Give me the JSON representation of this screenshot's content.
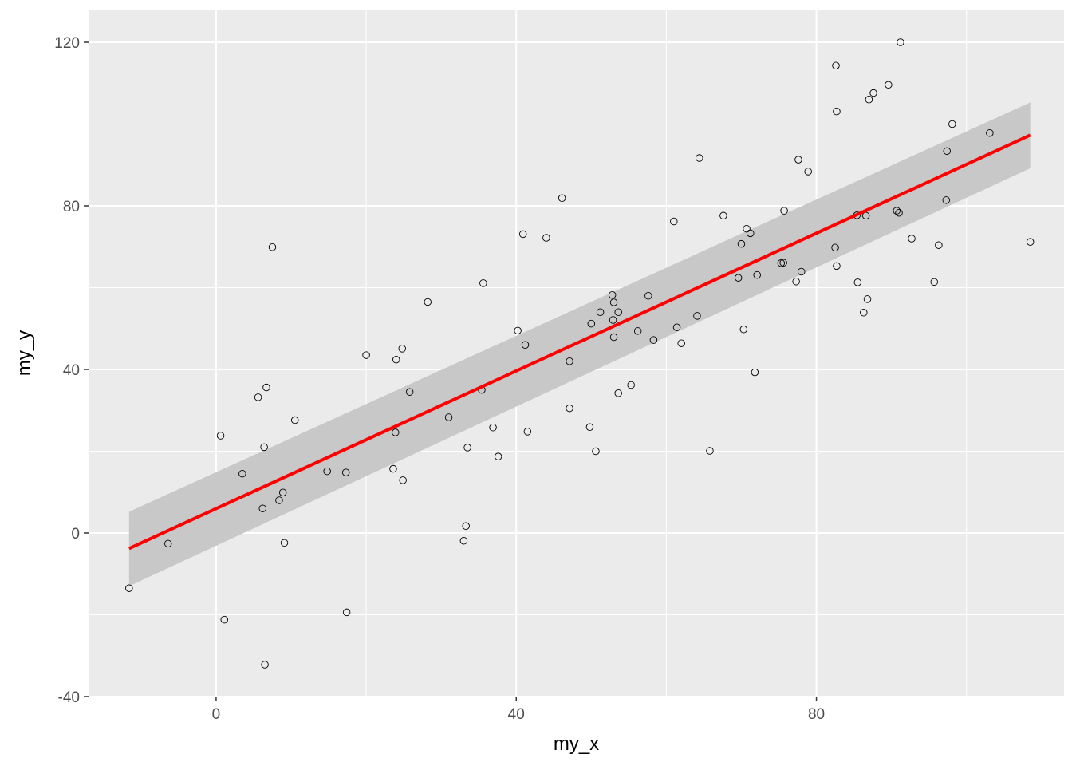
{
  "chart_data": {
    "type": "scatter",
    "title": "",
    "xlabel": "my_x",
    "ylabel": "my_y",
    "xlim": [
      -17,
      113
    ],
    "ylim": [
      -40,
      128
    ],
    "x_ticks": [
      0,
      40,
      80
    ],
    "x_tick_labels": [
      "0",
      "40",
      "80"
    ],
    "y_ticks": [
      -40,
      0,
      40,
      80,
      120
    ],
    "y_tick_labels": [
      "-40",
      "0",
      "40",
      "80",
      "120"
    ],
    "x_minor_ticks": [
      20,
      60,
      100
    ],
    "y_minor_ticks": [
      -20,
      20,
      60,
      100
    ],
    "grid": true,
    "legend": "none",
    "colors": {
      "panel_background": "#ebebeb",
      "grid_line": "#ffffff",
      "point_stroke": "#000000",
      "fit_line": "#ff0000",
      "confidence_band": "#c8c8c8"
    },
    "series": [
      {
        "kind": "points",
        "points": [
          [
            -11.6,
            -13.5
          ],
          [
            -6.4,
            -2.6
          ],
          [
            0.6,
            23.8
          ],
          [
            1.1,
            -21.2
          ],
          [
            3.5,
            14.5
          ],
          [
            5.6,
            33.2
          ],
          [
            6.2,
            6.0
          ],
          [
            6.4,
            21.0
          ],
          [
            6.7,
            35.6
          ],
          [
            6.5,
            -32.2
          ],
          [
            7.5,
            69.9
          ],
          [
            8.4,
            8.0
          ],
          [
            8.9,
            9.9
          ],
          [
            9.1,
            -2.4
          ],
          [
            10.5,
            27.6
          ],
          [
            14.8,
            15.1
          ],
          [
            17.3,
            14.8
          ],
          [
            17.4,
            -19.4
          ],
          [
            20.0,
            43.5
          ],
          [
            23.6,
            15.7
          ],
          [
            23.9,
            24.6
          ],
          [
            24.0,
            42.4
          ],
          [
            24.8,
            45.1
          ],
          [
            24.9,
            12.9
          ],
          [
            25.8,
            34.5
          ],
          [
            28.2,
            56.5
          ],
          [
            31.0,
            28.3
          ],
          [
            33.0,
            -1.9
          ],
          [
            33.3,
            1.7
          ],
          [
            33.5,
            20.9
          ],
          [
            35.4,
            35.0
          ],
          [
            35.6,
            61.1
          ],
          [
            36.9,
            25.8
          ],
          [
            37.6,
            18.7
          ],
          [
            40.2,
            49.5
          ],
          [
            40.9,
            73.1
          ],
          [
            41.2,
            46.0
          ],
          [
            41.5,
            24.8
          ],
          [
            44.0,
            72.2
          ],
          [
            46.1,
            81.9
          ],
          [
            47.1,
            42.0
          ],
          [
            47.1,
            30.5
          ],
          [
            49.8,
            25.9
          ],
          [
            50.0,
            51.2
          ],
          [
            50.6,
            20.0
          ],
          [
            51.2,
            54.0
          ],
          [
            52.8,
            58.2
          ],
          [
            52.9,
            52.1
          ],
          [
            53.0,
            47.9
          ],
          [
            53.0,
            56.4
          ],
          [
            53.6,
            54.0
          ],
          [
            53.6,
            34.2
          ],
          [
            55.3,
            36.2
          ],
          [
            56.2,
            49.4
          ],
          [
            57.6,
            58.0
          ],
          [
            58.3,
            47.2
          ],
          [
            61.0,
            76.2
          ],
          [
            61.4,
            50.3
          ],
          [
            62.0,
            46.4
          ],
          [
            64.1,
            53.1
          ],
          [
            64.4,
            91.7
          ],
          [
            65.8,
            20.1
          ],
          [
            67.6,
            77.6
          ],
          [
            69.6,
            62.4
          ],
          [
            70.0,
            70.7
          ],
          [
            70.3,
            49.8
          ],
          [
            70.7,
            74.4
          ],
          [
            71.2,
            73.3
          ],
          [
            71.8,
            39.3
          ],
          [
            72.1,
            63.1
          ],
          [
            75.3,
            66.0
          ],
          [
            75.6,
            66.1
          ],
          [
            75.7,
            78.8
          ],
          [
            77.3,
            61.5
          ],
          [
            77.6,
            91.3
          ],
          [
            78.0,
            63.9
          ],
          [
            78.9,
            88.4
          ],
          [
            82.5,
            69.8
          ],
          [
            82.6,
            114.3
          ],
          [
            82.7,
            103.1
          ],
          [
            82.7,
            65.3
          ],
          [
            85.4,
            77.7
          ],
          [
            85.5,
            61.3
          ],
          [
            86.3,
            53.9
          ],
          [
            86.6,
            77.6
          ],
          [
            86.8,
            57.2
          ],
          [
            87.0,
            106.0
          ],
          [
            87.6,
            107.6
          ],
          [
            89.6,
            109.6
          ],
          [
            90.7,
            78.8
          ],
          [
            91.0,
            78.3
          ],
          [
            91.2,
            120.0
          ],
          [
            92.7,
            72.0
          ],
          [
            95.7,
            61.4
          ],
          [
            96.3,
            70.4
          ],
          [
            97.3,
            81.4
          ],
          [
            97.4,
            93.4
          ],
          [
            98.1,
            100.0
          ],
          [
            103.1,
            97.8
          ],
          [
            108.5,
            71.2
          ]
        ]
      },
      {
        "kind": "fit",
        "x": [
          -11.6,
          108.5
        ],
        "y": [
          -3.8,
          97.3
        ],
        "band_lower": [
          -13.0,
          89.2
        ],
        "band_upper": [
          5.2,
          105.3
        ]
      }
    ]
  }
}
